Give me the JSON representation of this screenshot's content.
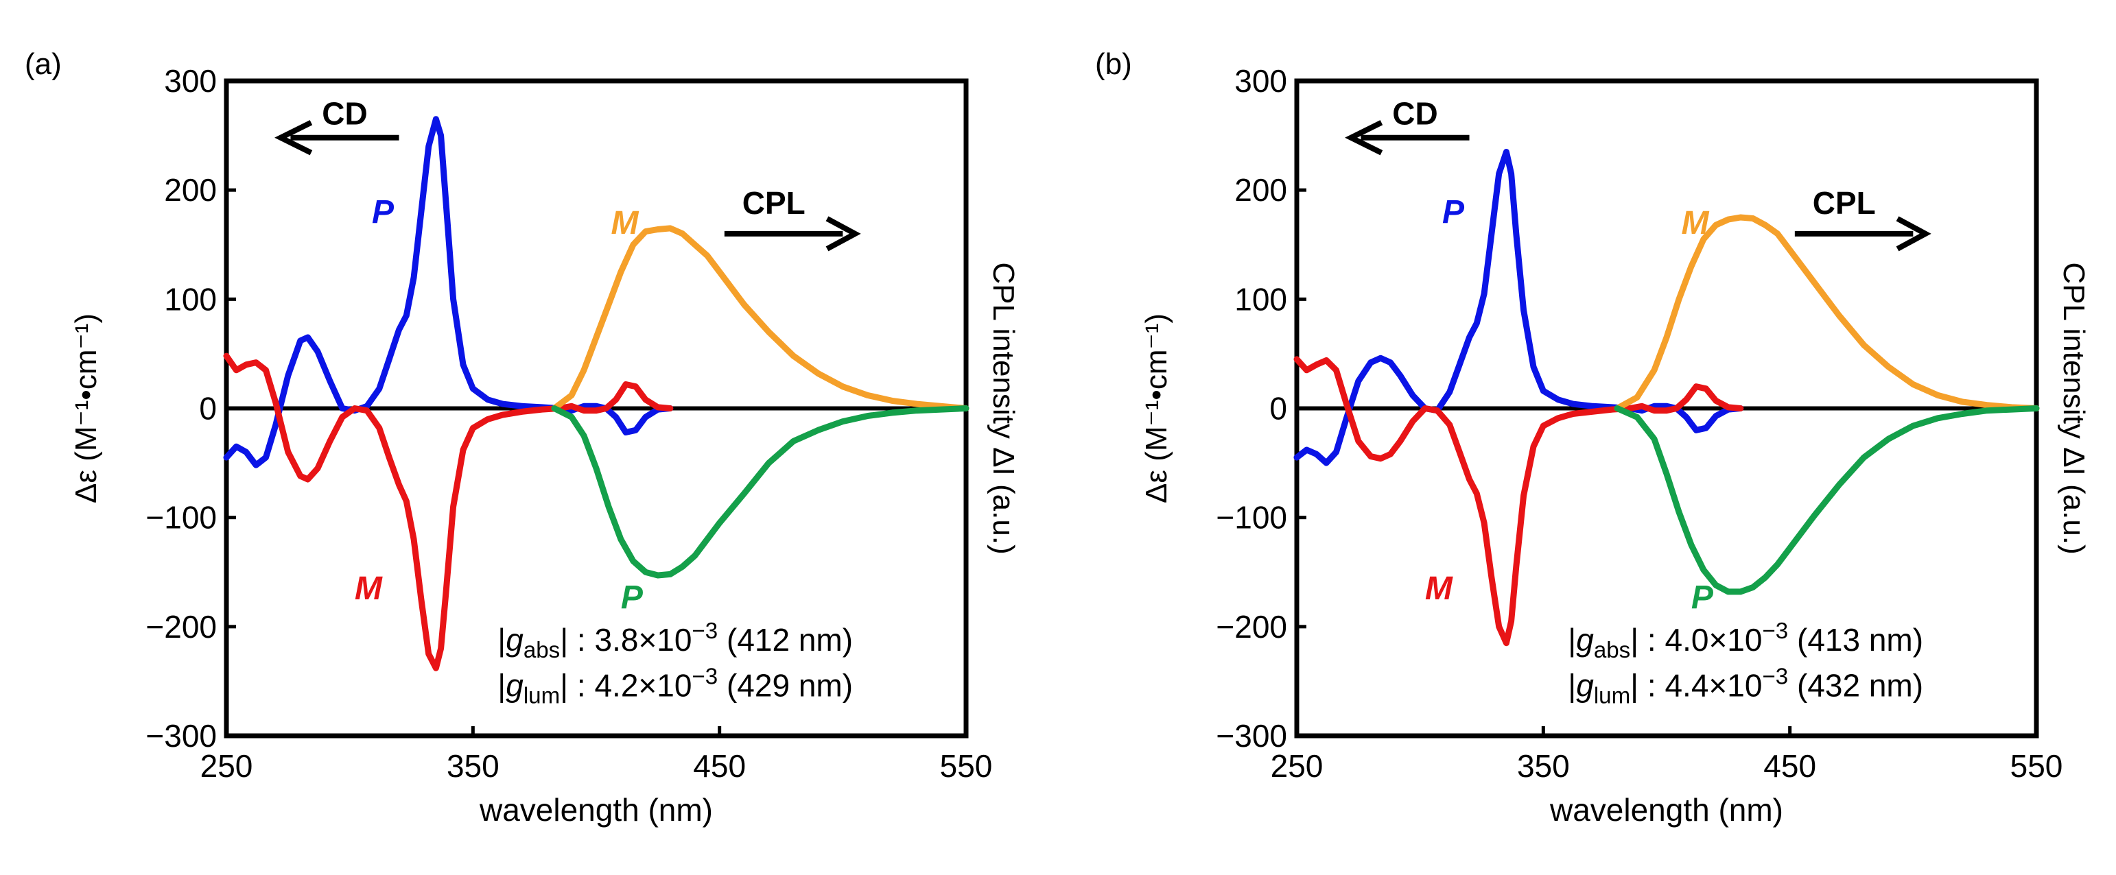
{
  "colors": {
    "cd_P": "#0a14e6",
    "cd_M": "#e81416",
    "cpl_M": "#f5a02a",
    "cpl_P": "#14a04a",
    "axis": "#000000"
  },
  "chart_data": [
    {
      "panel_label": "(a)",
      "type": "line",
      "xlabel": "wavelength (nm)",
      "ylabel": "Δε (M⁻¹•cm⁻¹)",
      "ylabel_right": "CPL intensity ΔI (a.u.)",
      "xlim": [
        250,
        550
      ],
      "ylim": [
        -300,
        300
      ],
      "xticks": [
        "250",
        "350",
        "450",
        "550"
      ],
      "yticks": [
        "300",
        "200",
        "100",
        "0",
        "−100",
        "−200",
        "−300"
      ],
      "arrow_cd": "CD",
      "arrow_cpl": "CPL",
      "label_cd_P": "P",
      "label_cd_M": "M",
      "label_cpl_M": "M",
      "label_cpl_P": "P",
      "g_abs": "|gabs| : 3.8×10⁻³ (412 nm)",
      "g_lum": "|glum| : 4.2×10⁻³ (429 nm)",
      "series": [
        {
          "name": "CD P",
          "color_key": "cd_P",
          "x": [
            250,
            254,
            258,
            262,
            266,
            270,
            275,
            280,
            283,
            287,
            292,
            297,
            302,
            307,
            312,
            316,
            320,
            323,
            326,
            329,
            332,
            335,
            337,
            339,
            342,
            346,
            350,
            356,
            362,
            370,
            378,
            385,
            390,
            395,
            400,
            404,
            408,
            412,
            416,
            420,
            425,
            430
          ],
          "y": [
            -45,
            -35,
            -40,
            -52,
            -45,
            -15,
            30,
            62,
            65,
            52,
            25,
            0,
            -2,
            2,
            18,
            45,
            72,
            85,
            120,
            180,
            240,
            265,
            250,
            190,
            100,
            40,
            18,
            8,
            4,
            2,
            1,
            0,
            -2,
            2,
            2,
            0,
            -8,
            -22,
            -20,
            -8,
            -1,
            0
          ]
        },
        {
          "name": "CD M",
          "color_key": "cd_M",
          "x": [
            250,
            254,
            258,
            262,
            266,
            270,
            275,
            280,
            283,
            287,
            292,
            297,
            302,
            307,
            312,
            316,
            320,
            323,
            326,
            329,
            332,
            335,
            337,
            339,
            342,
            346,
            350,
            356,
            362,
            370,
            378,
            385,
            390,
            395,
            400,
            404,
            408,
            412,
            416,
            420,
            425,
            430
          ],
          "y": [
            48,
            35,
            40,
            42,
            35,
            5,
            -40,
            -62,
            -65,
            -55,
            -30,
            -8,
            0,
            -2,
            -18,
            -45,
            -70,
            -85,
            -120,
            -175,
            -225,
            -238,
            -220,
            -170,
            -90,
            -38,
            -18,
            -10,
            -6,
            -3,
            -1,
            0,
            2,
            -2,
            -2,
            0,
            8,
            22,
            20,
            8,
            1,
            0
          ]
        },
        {
          "name": "CPL M",
          "color_key": "cpl_M",
          "x": [
            383,
            390,
            395,
            400,
            405,
            410,
            415,
            420,
            425,
            430,
            435,
            440,
            445,
            450,
            460,
            470,
            480,
            490,
            500,
            510,
            520,
            530,
            540,
            550
          ],
          "y": [
            0,
            12,
            35,
            65,
            95,
            125,
            150,
            162,
            164,
            165,
            160,
            150,
            140,
            125,
            95,
            70,
            48,
            32,
            20,
            12,
            7,
            4,
            2,
            0
          ]
        },
        {
          "name": "CPL P",
          "color_key": "cpl_P",
          "x": [
            383,
            390,
            395,
            400,
            405,
            410,
            415,
            420,
            425,
            430,
            435,
            440,
            445,
            450,
            460,
            470,
            480,
            490,
            500,
            510,
            520,
            530,
            540,
            550
          ],
          "y": [
            0,
            -8,
            -25,
            -55,
            -90,
            -120,
            -140,
            -150,
            -153,
            -152,
            -145,
            -135,
            -120,
            -105,
            -78,
            -50,
            -30,
            -20,
            -12,
            -7,
            -4,
            -2,
            -1,
            0
          ]
        }
      ]
    },
    {
      "panel_label": "(b)",
      "type": "line",
      "xlabel": "wavelength (nm)",
      "ylabel": "Δε (M⁻¹•cm⁻¹)",
      "ylabel_right": "CPL intensity ΔI (a.u.)",
      "xlim": [
        250,
        550
      ],
      "ylim": [
        -300,
        300
      ],
      "xticks": [
        "250",
        "350",
        "450",
        "550"
      ],
      "yticks": [
        "300",
        "200",
        "100",
        "0",
        "−100",
        "−200",
        "−300"
      ],
      "arrow_cd": "CD",
      "arrow_cpl": "CPL",
      "label_cd_P": "P",
      "label_cd_M": "M",
      "label_cpl_M": "M",
      "label_cpl_P": "P",
      "g_abs": "|gabs| : 4.0×10⁻³ (413 nm)",
      "g_lum": "|glum| : 4.4×10⁻³ (432 nm)",
      "series": [
        {
          "name": "CD P",
          "color_key": "cd_P",
          "x": [
            250,
            254,
            258,
            262,
            266,
            270,
            275,
            280,
            284,
            288,
            292,
            297,
            302,
            307,
            312,
            316,
            320,
            323,
            326,
            329,
            332,
            335,
            337,
            339,
            342,
            346,
            350,
            356,
            362,
            370,
            378,
            385,
            390,
            395,
            400,
            404,
            408,
            412,
            416,
            420,
            425,
            430
          ],
          "y": [
            -45,
            -38,
            -42,
            -50,
            -40,
            -10,
            25,
            42,
            46,
            42,
            30,
            12,
            0,
            -2,
            15,
            40,
            65,
            78,
            105,
            160,
            215,
            235,
            215,
            160,
            90,
            38,
            16,
            8,
            4,
            2,
            1,
            0,
            -2,
            2,
            2,
            0,
            -8,
            -20,
            -18,
            -7,
            -1,
            0
          ]
        },
        {
          "name": "CD M",
          "color_key": "cd_M",
          "x": [
            250,
            254,
            258,
            262,
            266,
            270,
            275,
            280,
            284,
            288,
            292,
            297,
            302,
            307,
            312,
            316,
            320,
            323,
            326,
            329,
            332,
            335,
            337,
            339,
            342,
            346,
            350,
            356,
            362,
            370,
            378,
            385,
            390,
            395,
            400,
            404,
            408,
            412,
            416,
            420,
            425,
            430
          ],
          "y": [
            45,
            35,
            40,
            44,
            35,
            5,
            -30,
            -44,
            -46,
            -42,
            -30,
            -12,
            0,
            -2,
            -15,
            -40,
            -65,
            -78,
            -105,
            -155,
            -200,
            -215,
            -195,
            -145,
            -80,
            -35,
            -16,
            -9,
            -5,
            -3,
            -1,
            0,
            2,
            -2,
            -2,
            0,
            8,
            20,
            18,
            7,
            1,
            0
          ]
        },
        {
          "name": "CPL M",
          "color_key": "cpl_M",
          "x": [
            380,
            388,
            395,
            400,
            405,
            410,
            415,
            420,
            425,
            430,
            435,
            440,
            445,
            450,
            460,
            470,
            480,
            490,
            500,
            510,
            520,
            530,
            540,
            550
          ],
          "y": [
            0,
            10,
            35,
            65,
            100,
            130,
            155,
            168,
            173,
            175,
            174,
            168,
            160,
            145,
            115,
            85,
            58,
            38,
            22,
            12,
            6,
            3,
            1,
            0
          ]
        },
        {
          "name": "CPL P",
          "color_key": "cpl_P",
          "x": [
            380,
            388,
            395,
            400,
            405,
            410,
            415,
            420,
            425,
            430,
            435,
            440,
            445,
            450,
            460,
            470,
            480,
            490,
            500,
            510,
            520,
            530,
            540,
            550
          ],
          "y": [
            0,
            -8,
            -28,
            -60,
            -95,
            -125,
            -148,
            -162,
            -168,
            -168,
            -164,
            -155,
            -143,
            -128,
            -98,
            -70,
            -45,
            -28,
            -16,
            -9,
            -5,
            -2,
            -1,
            0
          ]
        }
      ]
    }
  ]
}
